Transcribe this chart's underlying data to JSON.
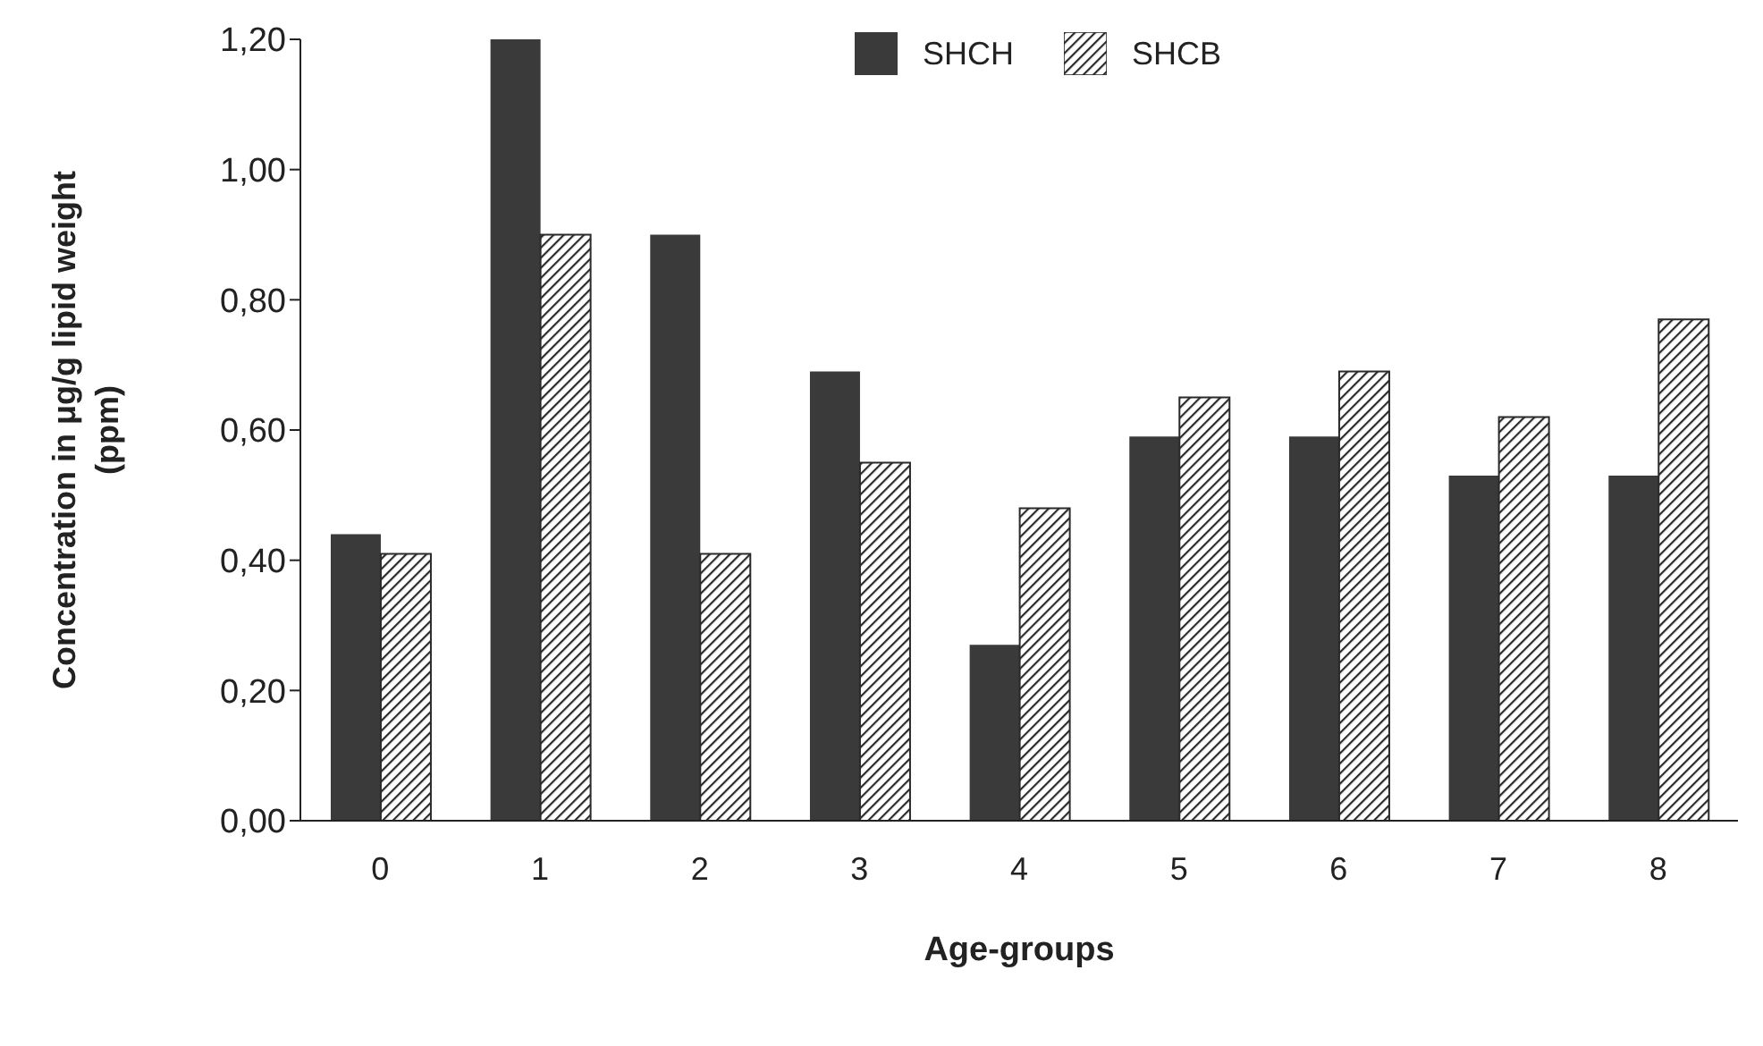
{
  "chart_data": {
    "type": "bar",
    "xlabel": "Age-groups",
    "ylabel": "Concentration in μg/g lipid weight\n(ppm)",
    "categories": [
      "0",
      "1",
      "2",
      "3",
      "4",
      "5",
      "6",
      "7",
      "8"
    ],
    "series": [
      {
        "name": "SHCH",
        "color": "#3a3a3a",
        "values": [
          0.44,
          1.2,
          0.9,
          0.69,
          0.27,
          0.59,
          0.59,
          0.53,
          0.53
        ]
      },
      {
        "name": "SHCB",
        "color": "#2a2a2a",
        "values": [
          0.41,
          0.9,
          0.41,
          0.55,
          0.48,
          0.65,
          0.69,
          0.62,
          0.77
        ]
      }
    ],
    "ylim": [
      0,
      1.2
    ],
    "yticks": [
      {
        "value": 0,
        "label": "0,00"
      },
      {
        "value": 0.2,
        "label": "0,20"
      },
      {
        "value": 0.4,
        "label": "0,40"
      },
      {
        "value": 0.6,
        "label": "0,60"
      },
      {
        "value": 0.8,
        "label": "0,80"
      },
      {
        "value": 1,
        "label": "1,00"
      },
      {
        "value": 1.2,
        "label": "1,20"
      }
    ],
    "grid": false,
    "legend": "top"
  }
}
